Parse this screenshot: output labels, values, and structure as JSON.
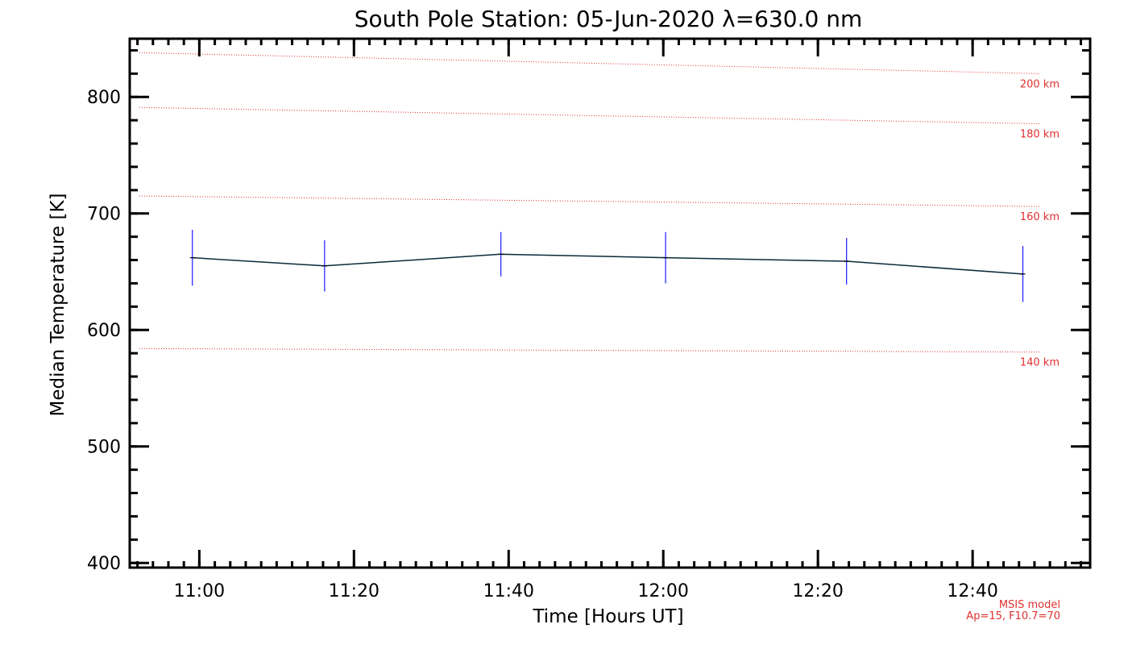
{
  "chart_data": {
    "type": "line",
    "title": "South Pole Station: 05-Jun-2020 λ=630.0 nm",
    "xlabel": "Time [Hours UT]",
    "ylabel": "Median Temperature [K]",
    "xlim": [
      10.85,
      12.92
    ],
    "ylim": [
      396,
      850
    ],
    "xticks": [
      {
        "value": 11.0,
        "label": "11:00"
      },
      {
        "value": 11.3333,
        "label": "11:20"
      },
      {
        "value": 11.6667,
        "label": "11:40"
      },
      {
        "value": 12.0,
        "label": "12:00"
      },
      {
        "value": 12.3333,
        "label": "12:20"
      },
      {
        "value": 12.6667,
        "label": "12:40"
      }
    ],
    "yticks": [
      {
        "value": 400,
        "label": "400"
      },
      {
        "value": 500,
        "label": "500"
      },
      {
        "value": 600,
        "label": "600"
      },
      {
        "value": 700,
        "label": "700"
      },
      {
        "value": 800,
        "label": "800"
      }
    ],
    "series": [
      {
        "name": "Median Temperature",
        "color": "#0a2a3a",
        "error_color": "#1a1aff",
        "points": [
          {
            "x": 10.985,
            "y": 662,
            "err": 24
          },
          {
            "x": 11.27,
            "y": 655,
            "err": 22
          },
          {
            "x": 11.65,
            "y": 665,
            "err": 19
          },
          {
            "x": 12.005,
            "y": 662,
            "err": 22
          },
          {
            "x": 12.395,
            "y": 659,
            "err": 20
          },
          {
            "x": 12.775,
            "y": 648,
            "err": 24
          }
        ]
      }
    ],
    "reference_lines": [
      {
        "label": "200 km",
        "y_start": 838,
        "y_end": 820,
        "color": "#e03030"
      },
      {
        "label": "180 km",
        "y_start": 791,
        "y_end": 777,
        "color": "#e03030"
      },
      {
        "label": "160 km",
        "y_start": 715,
        "y_end": 706,
        "color": "#e03030"
      },
      {
        "label": "140 km",
        "y_start": 584,
        "y_end": 581,
        "color": "#e03030"
      }
    ],
    "annotations": [
      "MSIS model",
      "Ap=15, F10.7=70"
    ]
  }
}
